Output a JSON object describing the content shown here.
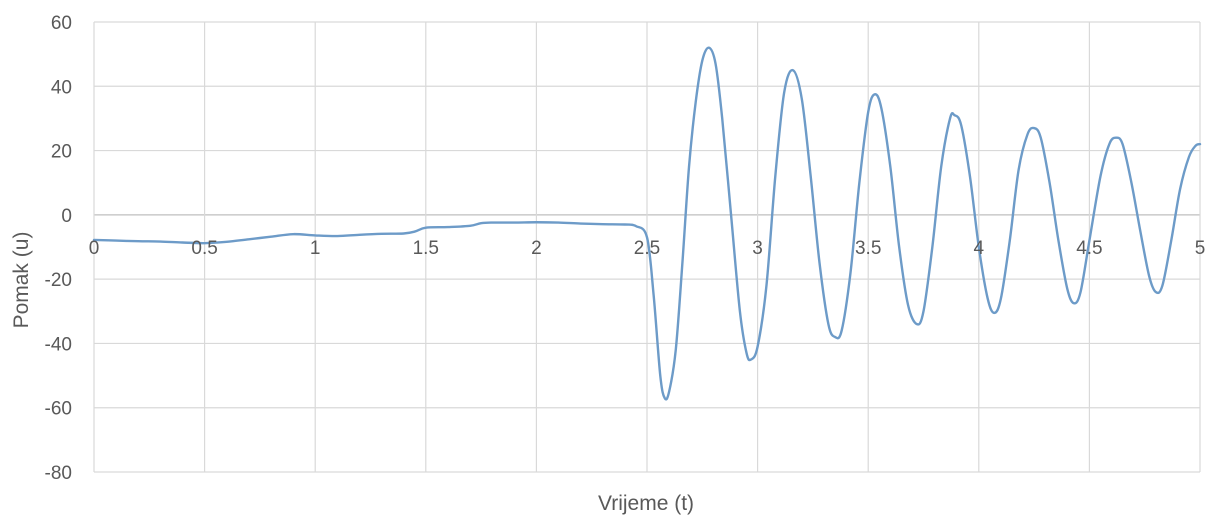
{
  "chart_data": {
    "type": "line",
    "title": "",
    "xlabel": "Vrijeme (t)",
    "ylabel": "Pomak (u)",
    "xlim": [
      0,
      5
    ],
    "ylim": [
      -80,
      60
    ],
    "x_ticks": [
      "0",
      "0.5",
      "1",
      "1.5",
      "2",
      "2.5",
      "3",
      "3.5",
      "4",
      "4.5",
      "5"
    ],
    "y_ticks": [
      "60",
      "40",
      "20",
      "0",
      "-20",
      "-40",
      "-60",
      "-80"
    ],
    "grid": true,
    "legend": "none",
    "line_color": "#6d9bc8",
    "series": [
      {
        "points": [
          [
            0,
            -7.8
          ],
          [
            0.1,
            -8
          ],
          [
            0.2,
            -8.2
          ],
          [
            0.3,
            -8.3
          ],
          [
            0.4,
            -8.6
          ],
          [
            0.5,
            -8.8
          ],
          [
            0.6,
            -8.4
          ],
          [
            0.7,
            -7.6
          ],
          [
            0.8,
            -6.8
          ],
          [
            0.9,
            -6
          ],
          [
            1.0,
            -6.4
          ],
          [
            1.1,
            -6.6
          ],
          [
            1.2,
            -6.2
          ],
          [
            1.3,
            -5.9
          ],
          [
            1.4,
            -5.8
          ],
          [
            1.45,
            -5.2
          ],
          [
            1.5,
            -4
          ],
          [
            1.6,
            -3.8
          ],
          [
            1.7,
            -3.4
          ],
          [
            1.75,
            -2.6
          ],
          [
            1.8,
            -2.4
          ],
          [
            1.9,
            -2.4
          ],
          [
            2.0,
            -2.3
          ],
          [
            2.1,
            -2.4
          ],
          [
            2.2,
            -2.7
          ],
          [
            2.3,
            -2.9
          ],
          [
            2.4,
            -3
          ],
          [
            2.45,
            -3.5
          ],
          [
            2.5,
            -7
          ],
          [
            2.53,
            -25
          ],
          [
            2.56,
            -50
          ],
          [
            2.58,
            -57
          ],
          [
            2.6,
            -55
          ],
          [
            2.63,
            -42
          ],
          [
            2.66,
            -15
          ],
          [
            2.69,
            15
          ],
          [
            2.72,
            35
          ],
          [
            2.75,
            48
          ],
          [
            2.78,
            52
          ],
          [
            2.81,
            47
          ],
          [
            2.84,
            30
          ],
          [
            2.88,
            0
          ],
          [
            2.92,
            -30
          ],
          [
            2.95,
            -43
          ],
          [
            2.97,
            -45
          ],
          [
            3.0,
            -41
          ],
          [
            3.04,
            -22
          ],
          [
            3.08,
            12
          ],
          [
            3.12,
            38
          ],
          [
            3.16,
            45
          ],
          [
            3.2,
            36
          ],
          [
            3.24,
            12
          ],
          [
            3.28,
            -15
          ],
          [
            3.32,
            -34
          ],
          [
            3.35,
            -38
          ],
          [
            3.38,
            -36
          ],
          [
            3.42,
            -18
          ],
          [
            3.46,
            10
          ],
          [
            3.5,
            32
          ],
          [
            3.53,
            37.5
          ],
          [
            3.56,
            33
          ],
          [
            3.6,
            15
          ],
          [
            3.64,
            -10
          ],
          [
            3.68,
            -28
          ],
          [
            3.72,
            -34
          ],
          [
            3.75,
            -30
          ],
          [
            3.79,
            -10
          ],
          [
            3.83,
            15
          ],
          [
            3.87,
            30
          ],
          [
            3.89,
            31
          ],
          [
            3.92,
            28
          ],
          [
            3.96,
            12
          ],
          [
            4.0,
            -10
          ],
          [
            4.04,
            -26
          ],
          [
            4.07,
            -30.5
          ],
          [
            4.1,
            -26
          ],
          [
            4.14,
            -8
          ],
          [
            4.18,
            14
          ],
          [
            4.22,
            25
          ],
          [
            4.25,
            27
          ],
          [
            4.28,
            24
          ],
          [
            4.32,
            10
          ],
          [
            4.36,
            -8
          ],
          [
            4.4,
            -23
          ],
          [
            4.43,
            -27.5
          ],
          [
            4.46,
            -24
          ],
          [
            4.5,
            -8
          ],
          [
            4.55,
            12
          ],
          [
            4.59,
            22
          ],
          [
            4.62,
            24
          ],
          [
            4.65,
            22
          ],
          [
            4.69,
            10
          ],
          [
            4.73,
            -5
          ],
          [
            4.77,
            -19
          ],
          [
            4.8,
            -24
          ],
          [
            4.83,
            -22
          ],
          [
            4.87,
            -8
          ],
          [
            4.91,
            8
          ],
          [
            4.95,
            18
          ],
          [
            4.98,
            21.5
          ],
          [
            5.0,
            22
          ]
        ]
      }
    ]
  }
}
